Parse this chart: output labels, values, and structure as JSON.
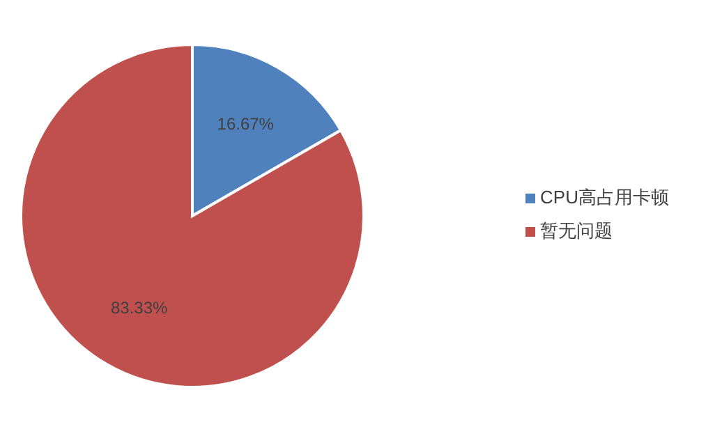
{
  "chart_data": {
    "type": "pie",
    "categories": [
      "CPU高占用卡顿",
      "暂无问题"
    ],
    "values": [
      16.67,
      83.33
    ],
    "colors": [
      "#4f81bd",
      "#c0504d"
    ],
    "value_labels": [
      "16.67%",
      "83.33%"
    ],
    "legend": "right"
  }
}
